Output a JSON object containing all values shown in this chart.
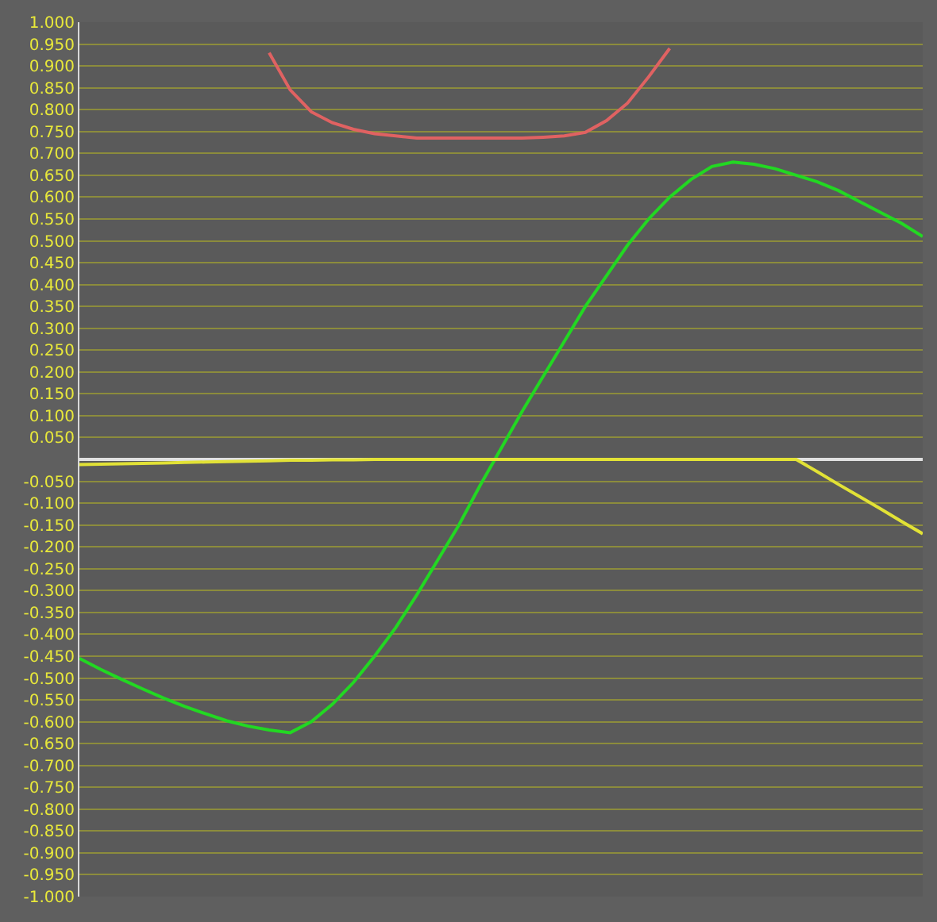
{
  "chart_data": {
    "type": "line",
    "categories": [
      null,
      null,
      null,
      null,
      null,
      null,
      null,
      null,
      null,
      null,
      null,
      null,
      null,
      null,
      null,
      null,
      null,
      null,
      null,
      null,
      null,
      null,
      null,
      null,
      null,
      null,
      null,
      null,
      null,
      null,
      null,
      null,
      null,
      null,
      null,
      null,
      null,
      null,
      null,
      null,
      null
    ],
    "series": [
      {
        "color": "#e06262",
        "values": [
          null,
          null,
          null,
          null,
          null,
          null,
          null,
          null,
          null,
          0.93,
          0.845,
          0.795,
          0.77,
          0.755,
          0.745,
          0.74,
          0.735,
          0.735,
          0.735,
          0.735,
          0.735,
          0.735,
          0.737,
          0.74,
          0.748,
          0.775,
          0.815,
          0.875,
          0.94,
          null,
          null,
          null,
          null,
          null,
          null,
          null,
          null,
          null,
          null,
          null,
          null
        ]
      },
      {
        "color": "#22d822",
        "values": [
          -0.455,
          -0.48,
          -0.503,
          -0.525,
          -0.546,
          -0.565,
          -0.582,
          -0.598,
          -0.61,
          -0.619,
          -0.625,
          -0.6,
          -0.56,
          -0.51,
          -0.45,
          -0.385,
          -0.31,
          -0.23,
          -0.15,
          -0.06,
          0.025,
          0.11,
          0.19,
          0.27,
          0.35,
          0.42,
          0.49,
          0.55,
          0.6,
          0.64,
          0.67,
          0.68,
          0.675,
          0.665,
          0.65,
          0.635,
          0.615,
          0.59,
          0.565,
          0.54,
          0.51
        ]
      },
      {
        "color": "#e2e236",
        "values": [
          -0.012,
          -0.011,
          -0.01,
          -0.009,
          -0.008,
          -0.007,
          -0.006,
          -0.005,
          -0.004,
          -0.003,
          -0.002,
          -0.002,
          -0.001,
          -0.001,
          0,
          0,
          0,
          0,
          0,
          0,
          0,
          0,
          0,
          0,
          0,
          0,
          0,
          0,
          0,
          0,
          0,
          0,
          0,
          0,
          0,
          -0.028,
          -0.057,
          -0.085,
          -0.113,
          -0.142,
          -0.17
        ]
      }
    ],
    "ylim": [
      -1,
      1
    ],
    "yticks": [
      {
        "value": -1,
        "label": "-1.000"
      },
      {
        "value": -0.95,
        "label": "-0.950"
      },
      {
        "value": -0.9,
        "label": "-0.900"
      },
      {
        "value": -0.85,
        "label": "-0.850"
      },
      {
        "value": -0.8,
        "label": "-0.800"
      },
      {
        "value": -0.75,
        "label": "-0.750"
      },
      {
        "value": -0.7,
        "label": "-0.700"
      },
      {
        "value": -0.65,
        "label": "-0.650"
      },
      {
        "value": -0.6,
        "label": "-0.600"
      },
      {
        "value": -0.55,
        "label": "-0.550"
      },
      {
        "value": -0.5,
        "label": "-0.500"
      },
      {
        "value": -0.45,
        "label": "-0.450"
      },
      {
        "value": -0.4,
        "label": "-0.400"
      },
      {
        "value": -0.35,
        "label": "-0.350"
      },
      {
        "value": -0.3,
        "label": "-0.300"
      },
      {
        "value": -0.25,
        "label": "-0.250"
      },
      {
        "value": -0.2,
        "label": "-0.200"
      },
      {
        "value": -0.15,
        "label": "-0.150"
      },
      {
        "value": -0.1,
        "label": "-0.100"
      },
      {
        "value": -0.05,
        "label": "-0.050"
      },
      {
        "value": 0,
        "label": null
      },
      {
        "value": 0.05,
        "label": "0.050"
      },
      {
        "value": 0.1,
        "label": "0.100"
      },
      {
        "value": 0.15,
        "label": "0.150"
      },
      {
        "value": 0.2,
        "label": "0.200"
      },
      {
        "value": 0.25,
        "label": "0.250"
      },
      {
        "value": 0.3,
        "label": "0.300"
      },
      {
        "value": 0.35,
        "label": "0.350"
      },
      {
        "value": 0.4,
        "label": "0.400"
      },
      {
        "value": 0.45,
        "label": "0.450"
      },
      {
        "value": 0.5,
        "label": "0.500"
      },
      {
        "value": 0.55,
        "label": "0.550"
      },
      {
        "value": 0.6,
        "label": "0.600"
      },
      {
        "value": 0.65,
        "label": "0.650"
      },
      {
        "value": 0.7,
        "label": "0.700"
      },
      {
        "value": 0.75,
        "label": "0.750"
      },
      {
        "value": 0.8,
        "label": "0.800"
      },
      {
        "value": 0.85,
        "label": "0.850"
      },
      {
        "value": 0.9,
        "label": "0.900"
      },
      {
        "value": 0.95,
        "label": "0.950"
      },
      {
        "value": 1,
        "label": "1.000"
      }
    ],
    "grid": "y",
    "tick_labels": "y",
    "legend": false,
    "marker": "none",
    "line_style": "solid"
  }
}
